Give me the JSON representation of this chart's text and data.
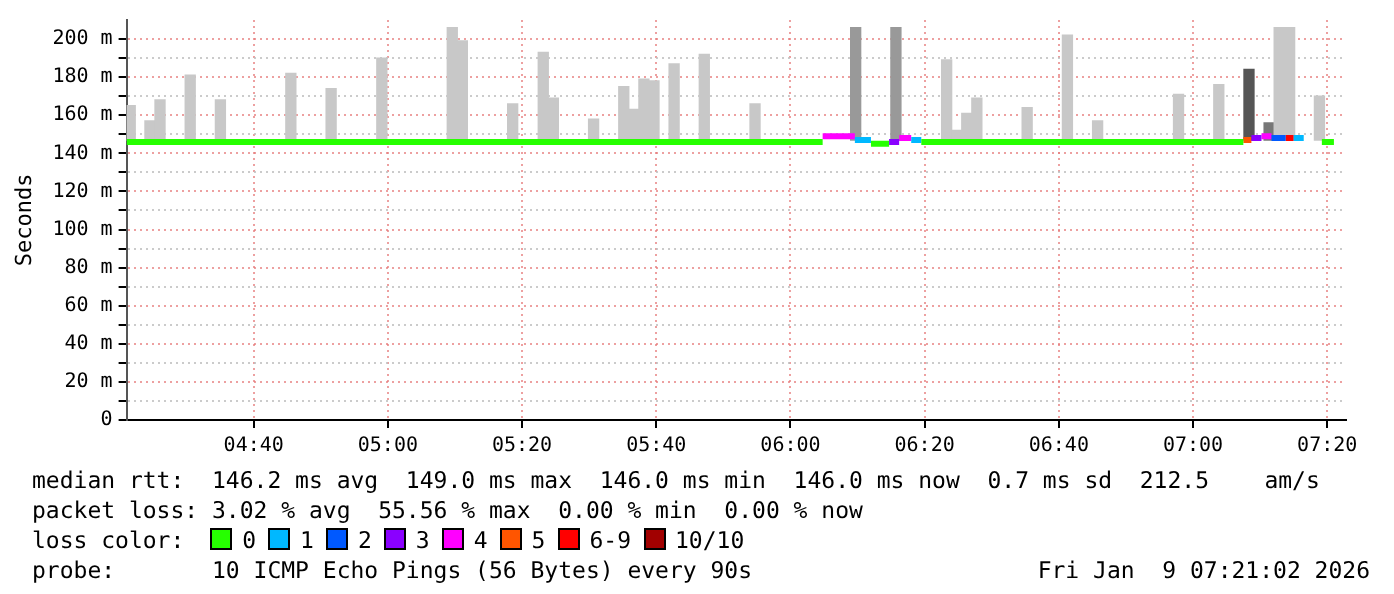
{
  "chart_data": {
    "type": "step",
    "ylabel": "Seconds",
    "legend_title": "loss color:",
    "legend": "bottom",
    "grid": true,
    "line_style": "solid",
    "marker": "none",
    "xlim": [
      4.351,
      7.38
    ],
    "ylim": [
      0,
      210
    ],
    "xticks": [
      {
        "value": 4.6667,
        "label": "04:40"
      },
      {
        "value": 5,
        "label": "05:00"
      },
      {
        "value": 5.3333,
        "label": "05:20"
      },
      {
        "value": 5.6667,
        "label": "05:40"
      },
      {
        "value": 6,
        "label": "06:00"
      },
      {
        "value": 6.3333,
        "label": "06:20"
      },
      {
        "value": 6.6667,
        "label": "06:40"
      },
      {
        "value": 7,
        "label": "07:00"
      },
      {
        "value": 7.3333,
        "label": "07:20"
      }
    ],
    "yticks": [
      {
        "value": 0,
        "label": "0"
      },
      {
        "value": 10,
        "label": null
      },
      {
        "value": 20,
        "label": "20 m"
      },
      {
        "value": 30,
        "label": null
      },
      {
        "value": 40,
        "label": "40 m"
      },
      {
        "value": 50,
        "label": null
      },
      {
        "value": 60,
        "label": "60 m"
      },
      {
        "value": 70,
        "label": null
      },
      {
        "value": 80,
        "label": "80 m"
      },
      {
        "value": 90,
        "label": null
      },
      {
        "value": 100,
        "label": "100 m"
      },
      {
        "value": 110,
        "label": null
      },
      {
        "value": 120,
        "label": "120 m"
      },
      {
        "value": 130,
        "label": null
      },
      {
        "value": 140,
        "label": "140 m"
      },
      {
        "value": 150,
        "label": null
      },
      {
        "value": 160,
        "label": "160 m"
      },
      {
        "value": 170,
        "label": null
      },
      {
        "value": 180,
        "label": "180 m"
      },
      {
        "value": 190,
        "label": null
      },
      {
        "value": 200,
        "label": "200 m"
      }
    ],
    "series": [
      {
        "type": "bar",
        "x": [
          4.36,
          4.409,
          4.434,
          4.509,
          4.584,
          4.759,
          4.859,
          4.985,
          5.16,
          5.185,
          5.31,
          5.386,
          5.411,
          5.511,
          5.586,
          5.611,
          5.636,
          5.661,
          5.711,
          5.786,
          5.912,
          6.162,
          6.262,
          6.388,
          6.413,
          6.438,
          6.463,
          6.588,
          6.688,
          6.763,
          6.964,
          7.064,
          7.139,
          7.189,
          7.214,
          7.24,
          7.314
        ],
        "base": [
          147,
          147,
          147,
          147,
          147,
          147,
          147,
          147,
          147,
          147,
          147,
          147,
          147,
          147,
          147,
          147,
          147,
          147,
          147,
          147,
          147,
          147,
          147,
          147,
          147,
          147,
          147,
          147,
          147,
          147,
          147,
          147,
          147,
          147,
          147,
          147,
          147
        ],
        "values": [
          18,
          10,
          21,
          34,
          21,
          35,
          27,
          43,
          59,
          52,
          19,
          46,
          22,
          11,
          28,
          16,
          32,
          31,
          40,
          45,
          19,
          59,
          59,
          42,
          5,
          14,
          22,
          17,
          55,
          10,
          24,
          29,
          37,
          9,
          59,
          59,
          23
        ],
        "colors": [
          "#c8c8c8",
          "#c8c8c8",
          "#c8c8c8",
          "#c8c8c8",
          "#c8c8c8",
          "#c8c8c8",
          "#c8c8c8",
          "#c8c8c8",
          "#c8c8c8",
          "#c8c8c8",
          "#c8c8c8",
          "#c8c8c8",
          "#c8c8c8",
          "#c8c8c8",
          "#c8c8c8",
          "#c8c8c8",
          "#c8c8c8",
          "#c8c8c8",
          "#c8c8c8",
          "#c8c8c8",
          "#c8c8c8",
          "#999999",
          "#999999",
          "#c8c8c8",
          "#c8c8c8",
          "#c8c8c8",
          "#c8c8c8",
          "#c8c8c8",
          "#c8c8c8",
          "#c8c8c8",
          "#c8c8c8",
          "#c8c8c8",
          "#555555",
          "#777777",
          "#c8c8c8",
          "#c8c8c8",
          "#c8c8c8"
        ]
      },
      {
        "name": "0",
        "color": "#26ff00",
        "x": [
          4.351,
          6.08,
          null,
          6.2,
          6.245,
          null,
          6.325,
          7.125,
          null,
          7.32,
          7.35
        ],
        "values": [
          146,
          146,
          null,
          145,
          145,
          null,
          146,
          146,
          null,
          146,
          146
        ]
      },
      {
        "name": "1",
        "color": "#00b8ff",
        "x": [
          6.16,
          6.2,
          null,
          6.3,
          6.325,
          null,
          7.25,
          7.275
        ],
        "values": [
          147,
          147,
          null,
          147,
          147,
          null,
          148,
          148
        ]
      },
      {
        "name": "2",
        "color": "#0059ff",
        "x": [
          7.195,
          7.23
        ],
        "values": [
          148,
          148
        ]
      },
      {
        "name": "3",
        "color": "#8a00ff",
        "x": [
          6.245,
          6.27,
          null,
          7.145,
          7.17
        ],
        "values": [
          146,
          146,
          null,
          148,
          148
        ]
      },
      {
        "name": "4",
        "color": "#ff00ff",
        "x": [
          6.08,
          6.16,
          null,
          6.27,
          6.3,
          null,
          7.17,
          7.195
        ],
        "values": [
          149,
          149,
          null,
          148,
          148,
          null,
          149,
          149
        ]
      },
      {
        "name": "5",
        "color": "#ff5500",
        "x": [
          7.125,
          7.145
        ],
        "values": [
          147,
          147
        ]
      },
      {
        "name": "6-9",
        "color": "#ff0000",
        "x": [
          7.23,
          7.25
        ],
        "values": [
          148,
          148
        ]
      },
      {
        "name": "10/10",
        "color": "#a10000"
      }
    ],
    "annotations": [
      "median rtt:  146.2 ms avg  149.0 ms max  146.0 ms min  146.0 ms now  0.7 ms sd  212.5    am/s",
      "packet loss: 3.02 % avg  55.56 % max  0.00 % min  0.00 % now",
      "probe:       10 ICMP Echo Pings (56 Bytes) every 90s",
      "Fri Jan  9 07:21:02 2026"
    ]
  }
}
